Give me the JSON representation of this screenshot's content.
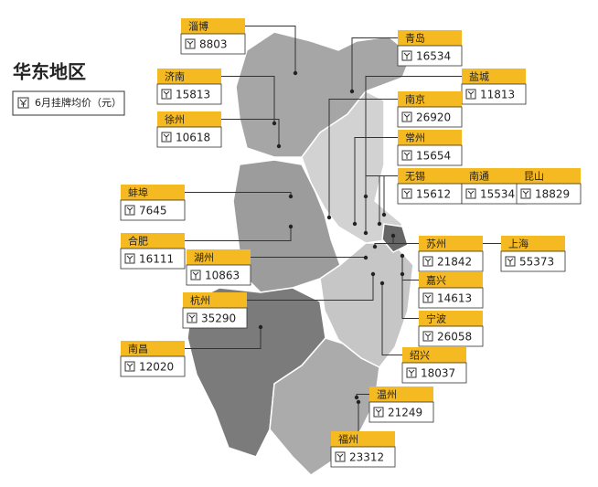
{
  "title": "华东地区",
  "legend": "6月挂牌均价（元）",
  "cities": [
    {
      "name": "淄博",
      "value": "8803"
    },
    {
      "name": "济南",
      "value": "15813"
    },
    {
      "name": "徐州",
      "value": "10618"
    },
    {
      "name": "蚌埠",
      "value": "7645"
    },
    {
      "name": "合肥",
      "value": "16111"
    },
    {
      "name": "湖州",
      "value": "10863"
    },
    {
      "name": "杭州",
      "value": "35290"
    },
    {
      "name": "南昌",
      "value": "12020"
    },
    {
      "name": "青岛",
      "value": "16534"
    },
    {
      "name": "盐城",
      "value": "11813"
    },
    {
      "name": "南京",
      "value": "26920"
    },
    {
      "name": "常州",
      "value": "15654"
    },
    {
      "name": "无锡",
      "value": "15612"
    },
    {
      "name": "南通",
      "value": "15534"
    },
    {
      "name": "昆山",
      "value": "18829"
    },
    {
      "name": "苏州",
      "value": "21842"
    },
    {
      "name": "上海",
      "value": "55373"
    },
    {
      "name": "嘉兴",
      "value": "14613"
    },
    {
      "name": "宁波",
      "value": "26058"
    },
    {
      "name": "绍兴",
      "value": "18037"
    },
    {
      "name": "温州",
      "value": "21249"
    },
    {
      "name": "福州",
      "value": "23312"
    }
  ]
}
